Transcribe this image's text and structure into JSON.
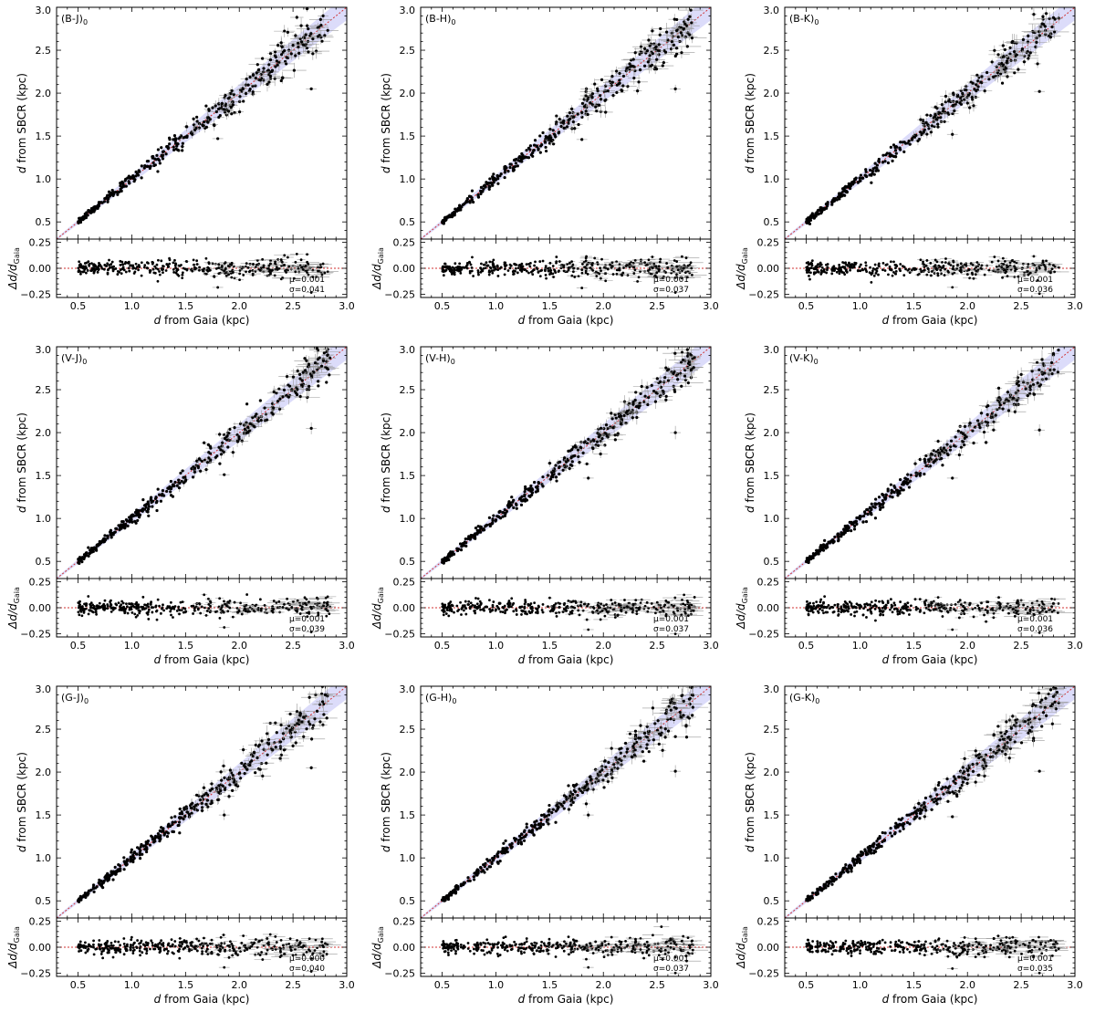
{
  "figure": {
    "xlabel_parts": [
      "d",
      " from Gaia (kpc)"
    ],
    "ylabel_top_parts": [
      "d",
      " from SBCR (kpc)"
    ],
    "ylabel_bottom_parts": [
      "Δd/d",
      "Gaia"
    ]
  },
  "chart_data": [
    {
      "type": "scatter",
      "tag": "(B-J)",
      "tag_sub": "0",
      "mu": "μ=0.001",
      "sigma": "σ=0.041",
      "xlim": [
        0.3,
        3.0
      ],
      "ylim": [
        0.3,
        3.0
      ],
      "resid_ylim": [
        -0.28,
        0.28
      ],
      "x_ticks": [
        "0.5",
        "1.0",
        "1.5",
        "2.0",
        "2.5",
        "3.0"
      ],
      "y_ticks": [
        "0.5",
        "1.0",
        "1.5",
        "2.0",
        "2.5",
        "3.0"
      ],
      "resid_ticks": [
        "−0.25",
        "0.00",
        "0.25"
      ],
      "outliers": [
        [
          2.67,
          2.05
        ],
        [
          1.8,
          1.47
        ],
        [
          2.78,
          2.9
        ]
      ],
      "reference_line": "y = x",
      "band_color": "#8c8cf0"
    },
    {
      "type": "scatter",
      "tag": "(B-H)",
      "tag_sub": "0",
      "mu": "μ=0.001",
      "sigma": "σ=0.037",
      "xlim": [
        0.3,
        3.0
      ],
      "ylim": [
        0.3,
        3.0
      ],
      "resid_ylim": [
        -0.28,
        0.28
      ],
      "x_ticks": [
        "0.5",
        "1.0",
        "1.5",
        "2.0",
        "2.5",
        "3.0"
      ],
      "y_ticks": [
        "0.5",
        "1.0",
        "1.5",
        "2.0",
        "2.5",
        "3.0"
      ],
      "resid_ticks": [
        "−0.25",
        "0.00",
        "0.25"
      ],
      "outliers": [
        [
          2.67,
          2.05
        ],
        [
          1.8,
          1.46
        ],
        [
          2.82,
          2.82
        ]
      ],
      "reference_line": "y = x",
      "band_color": "#8c8cf0"
    },
    {
      "type": "scatter",
      "tag": "(B-K)",
      "tag_sub": "0",
      "mu": "μ=0.001",
      "sigma": "σ=0.036",
      "xlim": [
        0.3,
        3.0
      ],
      "ylim": [
        0.3,
        3.0
      ],
      "resid_ylim": [
        -0.28,
        0.28
      ],
      "x_ticks": [
        "0.5",
        "1.0",
        "1.5",
        "2.0",
        "2.5",
        "3.0"
      ],
      "y_ticks": [
        "0.5",
        "1.0",
        "1.5",
        "2.0",
        "2.5",
        "3.0"
      ],
      "resid_ticks": [
        "−0.25",
        "0.00",
        "0.25"
      ],
      "outliers": [
        [
          2.67,
          2.02
        ],
        [
          1.86,
          1.52
        ],
        [
          2.8,
          2.88
        ]
      ],
      "reference_line": "y = x",
      "band_color": "#8c8cf0"
    },
    {
      "type": "scatter",
      "tag": "(V-J)",
      "tag_sub": "0",
      "mu": "μ=0.001",
      "sigma": "σ=0.039",
      "xlim": [
        0.3,
        3.0
      ],
      "ylim": [
        0.3,
        3.0
      ],
      "resid_ylim": [
        -0.28,
        0.28
      ],
      "x_ticks": [
        "0.5",
        "1.0",
        "1.5",
        "2.0",
        "2.5",
        "3.0"
      ],
      "y_ticks": [
        "0.5",
        "1.0",
        "1.5",
        "2.0",
        "2.5",
        "3.0"
      ],
      "resid_ticks": [
        "−0.25",
        "0.00",
        "0.25"
      ],
      "outliers": [
        [
          2.67,
          2.05
        ],
        [
          1.86,
          1.51
        ],
        [
          2.82,
          2.9
        ]
      ],
      "reference_line": "y = x",
      "band_color": "#8c8cf0"
    },
    {
      "type": "scatter",
      "tag": "(V-H)",
      "tag_sub": "0",
      "mu": "μ=0.001",
      "sigma": "σ=0.037",
      "xlim": [
        0.3,
        3.0
      ],
      "ylim": [
        0.3,
        3.0
      ],
      "resid_ylim": [
        -0.28,
        0.28
      ],
      "x_ticks": [
        "0.5",
        "1.0",
        "1.5",
        "2.0",
        "2.5",
        "3.0"
      ],
      "y_ticks": [
        "0.5",
        "1.0",
        "1.5",
        "2.0",
        "2.5",
        "3.0"
      ],
      "resid_ticks": [
        "−0.25",
        "0.00",
        "0.25"
      ],
      "outliers": [
        [
          2.67,
          2.0
        ],
        [
          1.86,
          1.47
        ],
        [
          2.8,
          2.82
        ]
      ],
      "reference_line": "y = x",
      "band_color": "#8c8cf0"
    },
    {
      "type": "scatter",
      "tag": "(V-K)",
      "tag_sub": "0",
      "mu": "μ=0.001",
      "sigma": "σ=0.036",
      "xlim": [
        0.3,
        3.0
      ],
      "ylim": [
        0.3,
        3.0
      ],
      "resid_ylim": [
        -0.28,
        0.28
      ],
      "x_ticks": [
        "0.5",
        "1.0",
        "1.5",
        "2.0",
        "2.5",
        "3.0"
      ],
      "y_ticks": [
        "0.5",
        "1.0",
        "1.5",
        "2.0",
        "2.5",
        "3.0"
      ],
      "resid_ticks": [
        "−0.25",
        "0.00",
        "0.25"
      ],
      "outliers": [
        [
          2.67,
          2.03
        ],
        [
          1.86,
          1.47
        ],
        [
          2.8,
          2.92
        ]
      ],
      "reference_line": "y = x",
      "band_color": "#8c8cf0"
    },
    {
      "type": "scatter",
      "tag": "(G-J)",
      "tag_sub": "0",
      "mu": "μ=0.000",
      "sigma": "σ=0.040",
      "xlim": [
        0.3,
        3.0
      ],
      "ylim": [
        0.3,
        3.0
      ],
      "resid_ylim": [
        -0.28,
        0.28
      ],
      "x_ticks": [
        "0.5",
        "1.0",
        "1.5",
        "2.0",
        "2.5",
        "3.0"
      ],
      "y_ticks": [
        "0.5",
        "1.0",
        "1.5",
        "2.0",
        "2.5",
        "3.0"
      ],
      "resid_ticks": [
        "−0.25",
        "0.00",
        "0.25"
      ],
      "outliers": [
        [
          2.67,
          2.05
        ],
        [
          1.86,
          1.5
        ],
        [
          2.8,
          2.9
        ]
      ],
      "reference_line": "y = x",
      "band_color": "#8c8cf0"
    },
    {
      "type": "scatter",
      "tag": "(G-H)",
      "tag_sub": "0",
      "mu": "μ=0.001",
      "sigma": "σ=0.037",
      "xlim": [
        0.3,
        3.0
      ],
      "ylim": [
        0.3,
        3.0
      ],
      "resid_ylim": [
        -0.28,
        0.28
      ],
      "x_ticks": [
        "0.5",
        "1.0",
        "1.5",
        "2.0",
        "2.5",
        "3.0"
      ],
      "y_ticks": [
        "0.5",
        "1.0",
        "1.5",
        "2.0",
        "2.5",
        "3.0"
      ],
      "resid_ticks": [
        "−0.25",
        "0.00",
        "0.25"
      ],
      "outliers": [
        [
          2.67,
          2.01
        ],
        [
          1.86,
          1.5
        ],
        [
          2.8,
          2.85
        ]
      ],
      "reference_line": "y = x",
      "band_color": "#8c8cf0"
    },
    {
      "type": "scatter",
      "tag": "(G-K)",
      "tag_sub": "0",
      "mu": "μ=0.001",
      "sigma": "σ=0.035",
      "xlim": [
        0.3,
        3.0
      ],
      "ylim": [
        0.3,
        3.0
      ],
      "resid_ylim": [
        -0.28,
        0.28
      ],
      "x_ticks": [
        "0.5",
        "1.0",
        "1.5",
        "2.0",
        "2.5",
        "3.0"
      ],
      "y_ticks": [
        "0.5",
        "1.0",
        "1.5",
        "2.0",
        "2.5",
        "3.0"
      ],
      "resid_ticks": [
        "−0.25",
        "0.00",
        "0.25"
      ],
      "outliers": [
        [
          2.67,
          2.01
        ],
        [
          1.86,
          1.48
        ],
        [
          2.8,
          2.88
        ]
      ],
      "reference_line": "y = x",
      "band_color": "#8c8cf0"
    }
  ]
}
